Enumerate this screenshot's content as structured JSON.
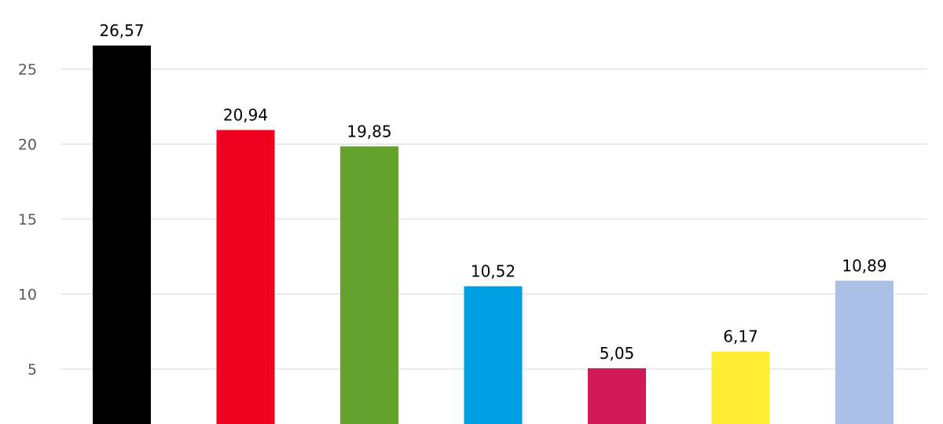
{
  "chart_data": {
    "type": "bar",
    "grid": true,
    "ylim": [
      0,
      30
    ],
    "y_ticks": [
      5,
      10,
      15,
      20,
      25,
      30
    ],
    "categories": [
      "",
      "",
      "",
      "",
      "",
      "",
      ""
    ],
    "values": [
      26.57,
      20.94,
      19.85,
      10.52,
      5.05,
      6.17,
      10.89
    ],
    "data_labels": [
      "26,57",
      "20,94",
      "19,85",
      "10,52",
      "5,05",
      "6,17",
      "10,89"
    ],
    "colors": [
      "#000000",
      "#ef0021",
      "#64a12d",
      "#009fe3",
      "#d21a58",
      "#ffed33",
      "#aabfe5"
    ]
  }
}
